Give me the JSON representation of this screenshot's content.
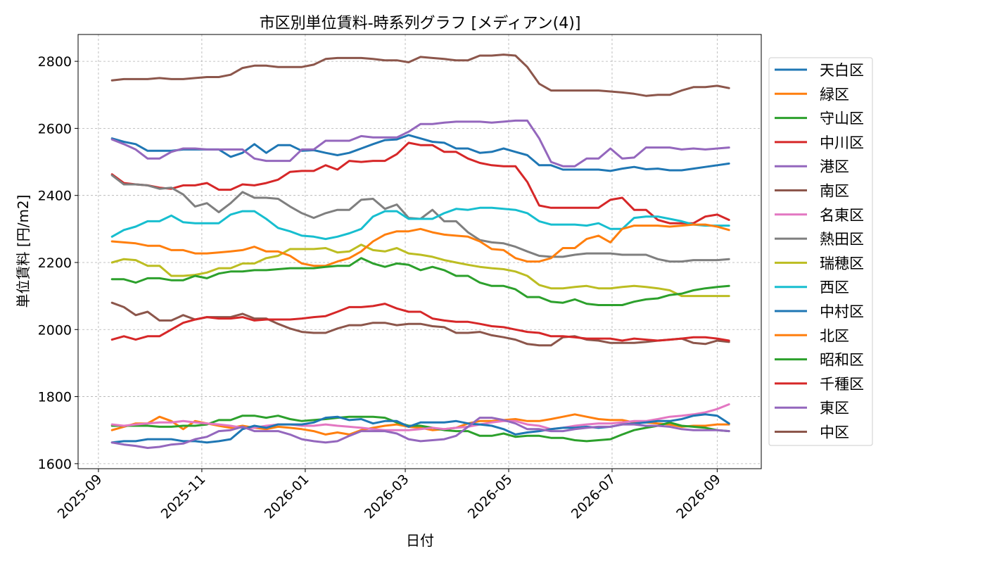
{
  "chart_data": {
    "type": "line",
    "title": "市区別単位賃料-時系列グラフ [メディアン(4)]",
    "xlabel": "日付",
    "ylabel": "単位賃料 [円/m2]",
    "ylim": [
      1585,
      2880
    ],
    "xlim": [
      "2025-08-20",
      "2026-09-27"
    ],
    "yticks": [
      1600,
      1800,
      2000,
      2200,
      2400,
      2600,
      2800
    ],
    "xticks": [
      "2025-09",
      "2025-11",
      "2026-01",
      "2026-03",
      "2026-05",
      "2026-07",
      "2026-09"
    ],
    "grid": true,
    "legend_position": "outside-right",
    "x": [
      "2025-09-09",
      "2025-09-16",
      "2025-09-23",
      "2025-09-30",
      "2025-10-07",
      "2025-10-14",
      "2025-10-21",
      "2025-10-28",
      "2025-11-04",
      "2025-11-11",
      "2025-11-18",
      "2025-11-25",
      "2025-12-02",
      "2025-12-09",
      "2025-12-16",
      "2025-12-23",
      "2025-12-30",
      "2026-01-06",
      "2026-01-13",
      "2026-01-20",
      "2026-01-27",
      "2026-02-03",
      "2026-02-10",
      "2026-02-17",
      "2026-02-24",
      "2026-03-03",
      "2026-03-10",
      "2026-03-17",
      "2026-03-24",
      "2026-03-31",
      "2026-04-07",
      "2026-04-14",
      "2026-04-21",
      "2026-04-28",
      "2026-05-05",
      "2026-05-12",
      "2026-05-19",
      "2026-05-26",
      "2026-06-02",
      "2026-06-09",
      "2026-06-16",
      "2026-06-23",
      "2026-06-30",
      "2026-07-07",
      "2026-07-14",
      "2026-07-21",
      "2026-07-28",
      "2026-08-04",
      "2026-08-11",
      "2026-08-18",
      "2026-08-25",
      "2026-09-01",
      "2026-09-08"
    ],
    "series": [
      {
        "name": "天白区",
        "color": "#1f77b4",
        "values": [
          2570,
          2560,
          2553,
          2533,
          2533,
          2533,
          2537,
          2537,
          2537,
          2537,
          2515,
          2527,
          2553,
          2527,
          2550,
          2550,
          2533,
          2535,
          2527,
          2520,
          2527,
          2540,
          2553,
          2565,
          2567,
          2580,
          2570,
          2560,
          2557,
          2540,
          2540,
          2527,
          2530,
          2540,
          2530,
          2520,
          2490,
          2490,
          2477,
          2477,
          2477,
          2477,
          2473,
          2480,
          2485,
          2478,
          2480,
          2475,
          2475,
          2480,
          2485,
          2490,
          2495
        ]
      },
      {
        "name": "緑区",
        "color": "#ff7f0e",
        "values": [
          1700,
          1710,
          1720,
          1720,
          1740,
          1727,
          1703,
          1727,
          1720,
          1713,
          1707,
          1713,
          1707,
          1703,
          1710,
          1707,
          1703,
          1697,
          1687,
          1693,
          1687,
          1700,
          1707,
          1713,
          1717,
          1710,
          1707,
          1700,
          1703,
          1707,
          1720,
          1727,
          1727,
          1730,
          1733,
          1727,
          1727,
          1733,
          1740,
          1747,
          1740,
          1733,
          1730,
          1730,
          1723,
          1723,
          1720,
          1717,
          1710,
          1713,
          1713,
          1717,
          1717
        ]
      },
      {
        "name": "守山区",
        "color": "#2ca02c",
        "values": [
          1713,
          1713,
          1713,
          1713,
          1710,
          1710,
          1713,
          1713,
          1717,
          1730,
          1730,
          1743,
          1743,
          1737,
          1743,
          1733,
          1727,
          1730,
          1733,
          1737,
          1740,
          1740,
          1740,
          1737,
          1723,
          1713,
          1713,
          1707,
          1700,
          1697,
          1697,
          1683,
          1683,
          1690,
          1680,
          1683,
          1683,
          1677,
          1677,
          1670,
          1667,
          1670,
          1673,
          1687,
          1700,
          1707,
          1713,
          1723,
          1713,
          1710,
          1707,
          1700,
          1697
        ]
      },
      {
        "name": "中川区",
        "color": "#d62728",
        "values": [
          2463,
          2437,
          2433,
          2430,
          2423,
          2420,
          2430,
          2430,
          2437,
          2417,
          2417,
          2433,
          2430,
          2437,
          2447,
          2470,
          2473,
          2473,
          2490,
          2477,
          2503,
          2500,
          2503,
          2503,
          2523,
          2557,
          2550,
          2550,
          2530,
          2530,
          2510,
          2497,
          2490,
          2487,
          2487,
          2440,
          2370,
          2363,
          2363,
          2363,
          2363,
          2363,
          2387,
          2393,
          2357,
          2357,
          2327,
          2317,
          2317,
          2317,
          2337,
          2343,
          2327
        ]
      },
      {
        "name": "港区",
        "color": "#9467bd",
        "values": [
          2567,
          2553,
          2537,
          2510,
          2510,
          2530,
          2540,
          2540,
          2537,
          2537,
          2537,
          2537,
          2510,
          2503,
          2503,
          2503,
          2537,
          2537,
          2563,
          2563,
          2563,
          2577,
          2573,
          2573,
          2573,
          2590,
          2613,
          2613,
          2617,
          2620,
          2620,
          2620,
          2617,
          2620,
          2623,
          2623,
          2570,
          2500,
          2487,
          2487,
          2510,
          2510,
          2540,
          2510,
          2513,
          2543,
          2543,
          2543,
          2537,
          2540,
          2537,
          2540,
          2543
        ]
      },
      {
        "name": "南区",
        "color": "#8c564b",
        "values": [
          2080,
          2067,
          2043,
          2053,
          2027,
          2027,
          2043,
          2030,
          2037,
          2037,
          2037,
          2047,
          2033,
          2033,
          2017,
          2003,
          1993,
          1990,
          1990,
          2003,
          2013,
          2013,
          2020,
          2020,
          2013,
          2017,
          2017,
          2010,
          2007,
          1990,
          1990,
          1993,
          1983,
          1977,
          1970,
          1957,
          1953,
          1953,
          1977,
          1980,
          1970,
          1967,
          1960,
          1960,
          1960,
          1963,
          1967,
          1970,
          1973,
          1960,
          1957,
          1967,
          1963
        ]
      },
      {
        "name": "名東区",
        "color": "#e377c2",
        "values": [
          1717,
          1713,
          1717,
          1720,
          1723,
          1723,
          1727,
          1723,
          1720,
          1717,
          1713,
          1707,
          1707,
          1713,
          1717,
          1717,
          1713,
          1713,
          1717,
          1713,
          1710,
          1707,
          1703,
          1700,
          1700,
          1700,
          1703,
          1707,
          1703,
          1707,
          1710,
          1717,
          1723,
          1727,
          1727,
          1717,
          1713,
          1703,
          1707,
          1713,
          1717,
          1720,
          1720,
          1723,
          1727,
          1727,
          1733,
          1740,
          1743,
          1747,
          1753,
          1763,
          1777
        ]
      },
      {
        "name": "熱田区",
        "color": "#7f7f7f",
        "values": [
          2460,
          2433,
          2433,
          2430,
          2420,
          2423,
          2403,
          2367,
          2377,
          2350,
          2377,
          2410,
          2393,
          2393,
          2390,
          2367,
          2347,
          2333,
          2347,
          2357,
          2357,
          2387,
          2390,
          2360,
          2373,
          2333,
          2330,
          2357,
          2323,
          2323,
          2290,
          2267,
          2260,
          2257,
          2247,
          2233,
          2220,
          2217,
          2217,
          2223,
          2227,
          2227,
          2227,
          2223,
          2223,
          2223,
          2210,
          2203,
          2203,
          2207,
          2207,
          2207,
          2210
        ]
      },
      {
        "name": "瑞穂区",
        "color": "#bcbd22",
        "values": [
          2200,
          2210,
          2207,
          2190,
          2190,
          2160,
          2160,
          2163,
          2170,
          2183,
          2183,
          2197,
          2197,
          2213,
          2220,
          2240,
          2240,
          2240,
          2243,
          2230,
          2233,
          2253,
          2237,
          2233,
          2243,
          2227,
          2223,
          2217,
          2207,
          2200,
          2193,
          2187,
          2183,
          2180,
          2173,
          2160,
          2133,
          2123,
          2123,
          2127,
          2130,
          2123,
          2123,
          2127,
          2130,
          2127,
          2123,
          2117,
          2100,
          2100,
          2100,
          2100,
          2100
        ]
      },
      {
        "name": "西区",
        "color": "#17becf",
        "values": [
          2277,
          2297,
          2307,
          2323,
          2323,
          2340,
          2320,
          2317,
          2317,
          2317,
          2343,
          2353,
          2353,
          2330,
          2303,
          2293,
          2280,
          2277,
          2270,
          2277,
          2287,
          2300,
          2337,
          2353,
          2353,
          2330,
          2330,
          2330,
          2347,
          2360,
          2357,
          2363,
          2363,
          2360,
          2357,
          2347,
          2323,
          2313,
          2313,
          2313,
          2310,
          2317,
          2300,
          2300,
          2333,
          2337,
          2337,
          2330,
          2323,
          2313,
          2310,
          2310,
          2310
        ]
      },
      {
        "name": "中村区",
        "color": "#1f77b4",
        "values": [
          1663,
          1667,
          1667,
          1673,
          1673,
          1673,
          1667,
          1667,
          1663,
          1667,
          1673,
          1703,
          1713,
          1707,
          1717,
          1717,
          1717,
          1723,
          1737,
          1740,
          1730,
          1733,
          1720,
          1727,
          1727,
          1710,
          1723,
          1723,
          1723,
          1727,
          1720,
          1717,
          1713,
          1703,
          1687,
          1693,
          1697,
          1703,
          1707,
          1707,
          1710,
          1707,
          1710,
          1717,
          1720,
          1723,
          1727,
          1727,
          1733,
          1743,
          1747,
          1743,
          1720
        ]
      },
      {
        "name": "北区",
        "color": "#ff7f0e",
        "values": [
          2263,
          2260,
          2257,
          2250,
          2250,
          2237,
          2237,
          2227,
          2227,
          2230,
          2233,
          2237,
          2247,
          2233,
          2233,
          2220,
          2197,
          2190,
          2190,
          2203,
          2213,
          2233,
          2263,
          2283,
          2293,
          2293,
          2300,
          2290,
          2283,
          2280,
          2277,
          2263,
          2240,
          2237,
          2213,
          2203,
          2203,
          2213,
          2243,
          2243,
          2270,
          2280,
          2260,
          2300,
          2310,
          2310,
          2310,
          2307,
          2310,
          2313,
          2313,
          2307,
          2297
        ]
      },
      {
        "name": "昭和区",
        "color": "#2ca02c",
        "values": [
          2150,
          2150,
          2140,
          2153,
          2153,
          2147,
          2147,
          2160,
          2153,
          2167,
          2173,
          2173,
          2177,
          2177,
          2180,
          2183,
          2183,
          2183,
          2187,
          2190,
          2190,
          2213,
          2197,
          2187,
          2197,
          2193,
          2177,
          2187,
          2177,
          2160,
          2160,
          2140,
          2130,
          2130,
          2120,
          2097,
          2097,
          2083,
          2080,
          2090,
          2077,
          2073,
          2073,
          2073,
          2083,
          2090,
          2093,
          2103,
          2107,
          2117,
          2123,
          2127,
          2130
        ]
      },
      {
        "name": "千種区",
        "color": "#d62728",
        "values": [
          1970,
          1980,
          1970,
          1980,
          1980,
          2000,
          2020,
          2030,
          2037,
          2033,
          2033,
          2037,
          2027,
          2030,
          2030,
          2030,
          2033,
          2037,
          2040,
          2053,
          2067,
          2067,
          2070,
          2077,
          2063,
          2053,
          2053,
          2033,
          2027,
          2023,
          2023,
          2017,
          2010,
          2007,
          2000,
          1993,
          1990,
          1980,
          1980,
          1977,
          1973,
          1973,
          1973,
          1967,
          1973,
          1970,
          1967,
          1970,
          1973,
          1977,
          1977,
          1973,
          1967
        ]
      },
      {
        "name": "東区",
        "color": "#9467bd",
        "values": [
          1663,
          1657,
          1653,
          1647,
          1650,
          1657,
          1660,
          1673,
          1680,
          1697,
          1700,
          1710,
          1697,
          1697,
          1697,
          1687,
          1673,
          1667,
          1663,
          1667,
          1683,
          1697,
          1697,
          1697,
          1690,
          1673,
          1667,
          1670,
          1673,
          1683,
          1710,
          1737,
          1737,
          1730,
          1720,
          1703,
          1703,
          1697,
          1697,
          1703,
          1707,
          1710,
          1710,
          1717,
          1717,
          1713,
          1713,
          1710,
          1703,
          1700,
          1700,
          1700,
          1697
        ]
      },
      {
        "name": "中区",
        "color": "#8c564b",
        "values": [
          2743,
          2747,
          2747,
          2747,
          2750,
          2747,
          2747,
          2750,
          2753,
          2753,
          2760,
          2780,
          2787,
          2787,
          2783,
          2783,
          2783,
          2790,
          2807,
          2810,
          2810,
          2810,
          2807,
          2803,
          2803,
          2797,
          2813,
          2810,
          2807,
          2803,
          2803,
          2817,
          2817,
          2820,
          2817,
          2783,
          2733,
          2713,
          2713,
          2713,
          2713,
          2713,
          2710,
          2707,
          2703,
          2697,
          2700,
          2700,
          2713,
          2723,
          2723,
          2727,
          2720
        ]
      }
    ]
  }
}
